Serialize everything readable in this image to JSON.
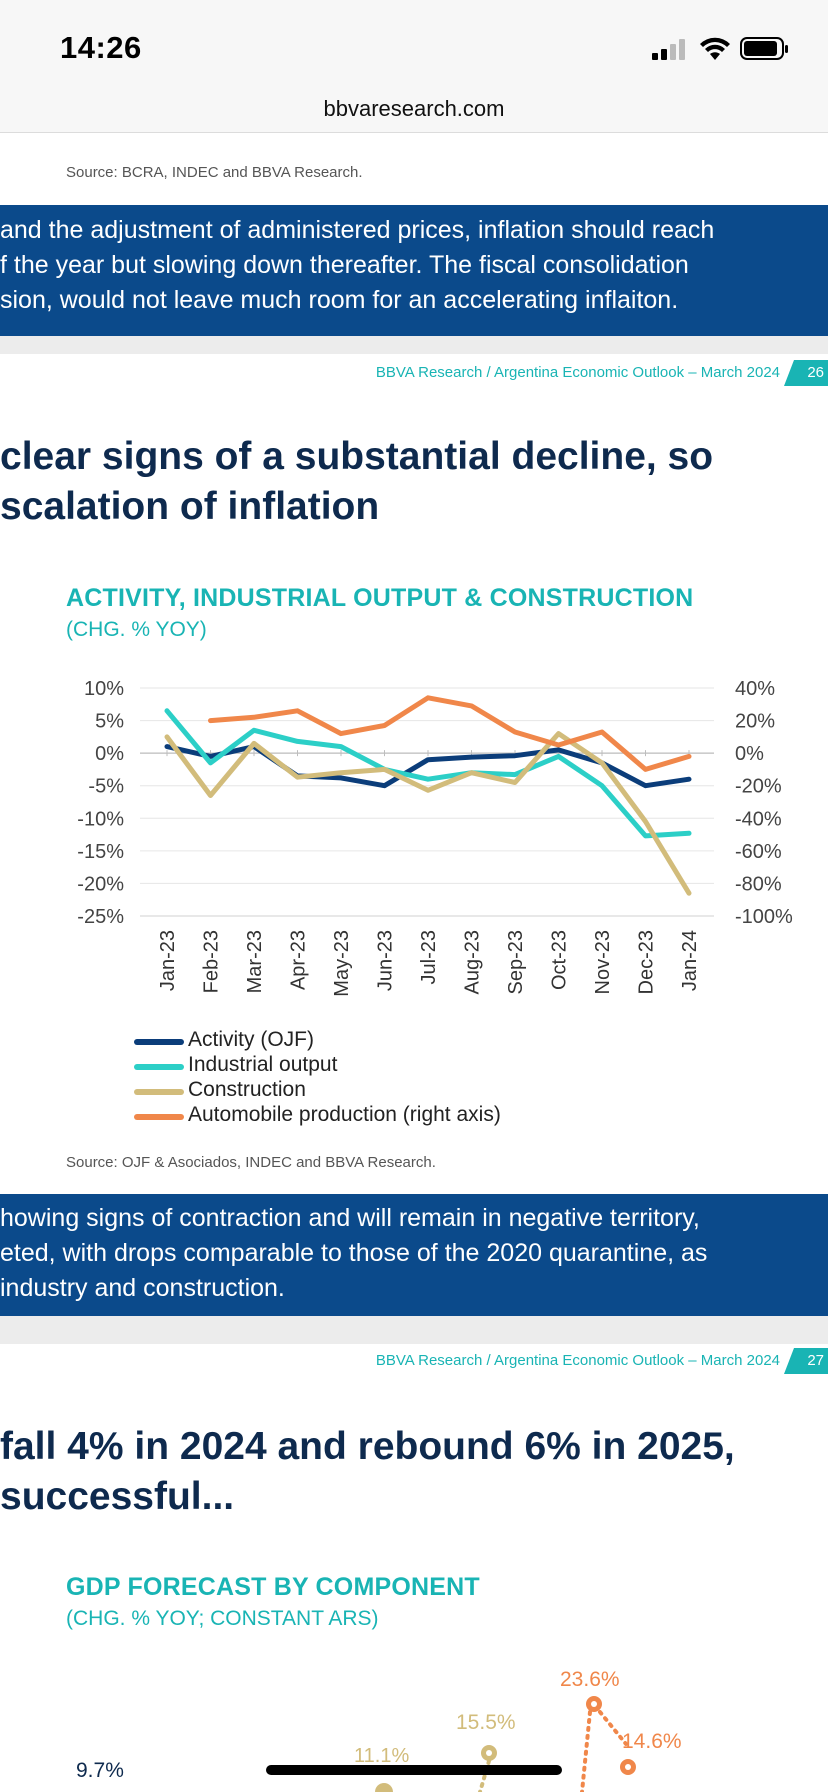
{
  "status_bar": {
    "time": "14:26"
  },
  "browser": {
    "url": "bbvaresearch.com"
  },
  "slide25": {
    "source": "Source: BCRA, INDEC and BBVA Research.",
    "banner_lines": [
      "and the adjustment of administered prices, inflation should reach",
      "f the year but slowing down thereafter. The fiscal consolidation",
      "sion, would not leave much room for an accelerating inflaiton."
    ]
  },
  "slide26": {
    "header": "BBVA Research / Argentina Economic Outlook – March 2024",
    "page_number": "26",
    "headline_lines": [
      "clear signs of a substantial decline, so",
      "scalation of inflation"
    ],
    "chart_title": "ACTIVITY, INDUSTRIAL OUTPUT & CONSTRUCTION",
    "chart_subtitle": "(CHG. % YOY)",
    "source": "Source: OJF & Asociados, INDEC and BBVA Research.",
    "banner_lines": [
      "howing signs of contraction and will remain in negative territory,",
      "eted, with drops comparable to those of the 2020 quarantine, as",
      " industry and construction."
    ]
  },
  "slide27": {
    "header": "BBVA Research / Argentina Economic Outlook – March 2024",
    "page_number": "27",
    "headline_lines": [
      "fall 4% in 2024 and rebound 6% in 2025,",
      " successful..."
    ],
    "chart_title": "GDP FORECAST BY COMPONENT",
    "chart_subtitle": "(CHG. % YOY; CONSTANT ARS)",
    "visible_labels": [
      "9.7%",
      "11.1%",
      "15.5%",
      "23.6%",
      "14.6%"
    ]
  },
  "colors": {
    "navy": "#0b3d7a",
    "teal": "#2ccfc7",
    "tan": "#d2bc7b",
    "orange": "#f0874a",
    "banner": "#0b4a8b",
    "accent": "#19b4b4"
  },
  "chart_data": {
    "type": "line",
    "categories": [
      "Jan-23",
      "Feb-23",
      "Mar-23",
      "Apr-23",
      "May-23",
      "Jun-23",
      "Jul-23",
      "Aug-23",
      "Sep-23",
      "Oct-23",
      "Nov-23",
      "Dec-23",
      "Jan-24"
    ],
    "left_axis": {
      "ylim": [
        -25,
        10
      ],
      "ticks": [
        "10%",
        "5%",
        "0%",
        "-5%",
        "-10%",
        "-15%",
        "-20%",
        "-25%"
      ]
    },
    "right_axis": {
      "ylim": [
        -100,
        40
      ],
      "ticks": [
        "40%",
        "20%",
        "0%",
        "-20%",
        "-40%",
        "-60%",
        "-80%",
        "-100%"
      ]
    },
    "series": [
      {
        "name": "Activity (OJF)",
        "axis": "left",
        "color": "#0b3d7a",
        "values": [
          1.0,
          -0.5,
          1.0,
          -3.5,
          -3.8,
          -5.0,
          -1.0,
          -0.6,
          -0.4,
          0.5,
          -1.5,
          -5.0,
          -4.0
        ]
      },
      {
        "name": "Industrial output",
        "axis": "left",
        "color": "#2ccfc7",
        "values": [
          6.5,
          -1.5,
          3.5,
          1.8,
          1.0,
          -2.5,
          -4.0,
          -3.0,
          -3.3,
          -0.5,
          -5.0,
          -12.7,
          -12.3
        ]
      },
      {
        "name": "Construction",
        "axis": "left",
        "color": "#d2bc7b",
        "values": [
          2.5,
          -6.5,
          1.5,
          -3.7,
          -3.0,
          -2.5,
          -5.7,
          -3.0,
          -4.5,
          3.0,
          -1.5,
          -10.5,
          -21.5
        ]
      },
      {
        "name": "Automobile production (right axis)",
        "axis": "right",
        "color": "#f0874a",
        "values": null,
        "values_right": [
          20,
          22,
          26,
          12,
          17,
          34,
          29,
          13,
          5,
          13,
          -10,
          -2
        ]
      }
    ],
    "orange_categories": [
      "Feb-23",
      "Mar-23",
      "Apr-23",
      "May-23",
      "Jun-23",
      "Jul-23",
      "Aug-23",
      "Sep-23",
      "Oct-23",
      "Nov-23",
      "Dec-23",
      "Jan-24"
    ],
    "legend_position": "bottom-left"
  }
}
